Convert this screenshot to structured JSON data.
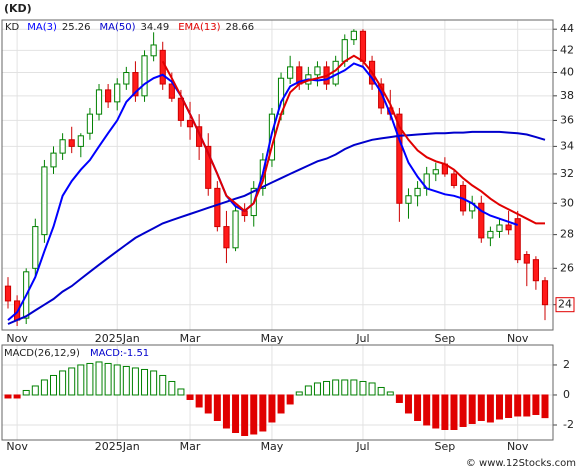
{
  "chart_data": [
    {
      "type": "candlestick",
      "title": "(KD)",
      "ticker": "KD",
      "log_scale": true,
      "grid": true,
      "legend": [
        {
          "name": "MA(3)",
          "value": 25.26,
          "color": "#0000ff"
        },
        {
          "name": "MA(50)",
          "value": 34.49,
          "color": "#0000cc"
        },
        {
          "name": "EMA(13)",
          "value": 28.66,
          "color": "#e00000"
        }
      ],
      "categories": [
        null,
        "Nov",
        null,
        null,
        null,
        null,
        null,
        null,
        null,
        null,
        null,
        null,
        "2025Jan",
        null,
        null,
        null,
        null,
        null,
        null,
        null,
        "Mar",
        null,
        null,
        null,
        null,
        null,
        null,
        null,
        null,
        "May",
        null,
        null,
        null,
        null,
        null,
        null,
        null,
        null,
        null,
        "Jul",
        null,
        null,
        null,
        null,
        null,
        null,
        null,
        null,
        "Sep",
        null,
        null,
        null,
        null,
        null,
        null,
        null,
        "Nov",
        null,
        null,
        null
      ],
      "open": [
        25,
        24.2,
        23.3,
        26,
        28,
        32.5,
        33.5,
        34.5,
        34,
        35,
        36.5,
        38.5,
        37.5,
        39,
        40,
        38,
        41.5,
        42,
        39,
        37.8,
        36,
        35.5,
        34,
        31,
        28.5,
        27.2,
        29.5,
        29.2,
        31,
        33,
        36.5,
        39.5,
        40.5,
        39,
        39.8,
        40.5,
        39,
        41,
        43,
        43.8,
        41,
        39,
        37,
        36.5,
        30,
        30.5,
        31,
        32,
        32.7,
        32,
        31.2,
        29.5,
        30,
        27.8,
        28.2,
        28.6,
        29,
        26.8,
        26.5,
        25.3
      ],
      "high": [
        25.5,
        24.5,
        26,
        29,
        33,
        34,
        35,
        35.5,
        35,
        37,
        39,
        39,
        39.5,
        40.5,
        41,
        42,
        43.7,
        42.8,
        40,
        38.5,
        37.5,
        36.5,
        35,
        31.5,
        29.5,
        29.8,
        30,
        31.5,
        33.5,
        37,
        40,
        41.5,
        41,
        40.5,
        41,
        41,
        41.5,
        43.5,
        44,
        44,
        41.5,
        39.5,
        38.5,
        37,
        31,
        31.5,
        32.5,
        32.8,
        33.2,
        32.3,
        31.5,
        30.5,
        30.5,
        28.5,
        29,
        29.5,
        29.5,
        27,
        26.7,
        25.5
      ],
      "low": [
        23.8,
        22.9,
        23,
        25.5,
        27.5,
        32,
        33,
        33.5,
        33.2,
        34.5,
        36,
        37,
        36.8,
        38.5,
        37.5,
        37.5,
        41,
        38.5,
        37.5,
        35.5,
        34.5,
        33,
        30.5,
        28.2,
        26.3,
        27,
        28.8,
        28.5,
        30.5,
        32.5,
        36,
        39,
        38.5,
        38.5,
        38.8,
        38.5,
        38.8,
        40.5,
        42.5,
        40.5,
        38.5,
        36.5,
        36,
        28.8,
        29,
        29.8,
        30.5,
        31.5,
        31.8,
        31,
        29.2,
        29,
        27.5,
        27.3,
        27.8,
        28,
        26.3,
        25,
        24.8,
        23.2
      ],
      "close": [
        24.2,
        23.2,
        25.8,
        28.5,
        32.5,
        33.5,
        34.5,
        34,
        34.8,
        36.5,
        38.5,
        37.5,
        39,
        40,
        38,
        41.5,
        42.5,
        39,
        37.8,
        36,
        35.5,
        34,
        31,
        28.5,
        27.2,
        29.5,
        29.2,
        31,
        33,
        36.5,
        39.5,
        40.5,
        39,
        39.8,
        40.5,
        39,
        41,
        43,
        43.8,
        41,
        39,
        37,
        36.5,
        30,
        30.5,
        31,
        32,
        32.3,
        32,
        31.2,
        29.5,
        30,
        27.8,
        28.2,
        28.6,
        28.3,
        26.5,
        26.3,
        25.3,
        24
      ],
      "lines": [
        {
          "name": "MA(50)",
          "color": "#0000cc",
          "values": [
            23,
            23.2,
            23.4,
            23.7,
            24,
            24.3,
            24.7,
            25,
            25.4,
            25.8,
            26.2,
            26.6,
            27,
            27.4,
            27.8,
            28.1,
            28.4,
            28.7,
            28.9,
            29.1,
            29.3,
            29.5,
            29.7,
            29.9,
            30.1,
            30.3,
            30.5,
            30.8,
            31.1,
            31.4,
            31.7,
            32,
            32.3,
            32.6,
            32.9,
            33.1,
            33.4,
            33.8,
            34.1,
            34.3,
            34.5,
            34.6,
            34.7,
            34.8,
            34.85,
            34.9,
            34.95,
            35,
            35,
            35.05,
            35.05,
            35.1,
            35.1,
            35.1,
            35.1,
            35.05,
            35,
            34.9,
            34.7,
            34.5
          ]
        },
        {
          "color": "#0000ff",
          "values": [
            23.2,
            23.6,
            24.5,
            25.5,
            27,
            28.5,
            30.5,
            31.5,
            32.3,
            33,
            34,
            35,
            36,
            37.5,
            38.3,
            39,
            39.5,
            39.8,
            39.2,
            38,
            36.5,
            35,
            33.5,
            32,
            30.5,
            29.8,
            29.5,
            30,
            32,
            35,
            37.5,
            38.8,
            39.2,
            39.4,
            39.3,
            39.4,
            39.8,
            40.2,
            40.8,
            40.5,
            39.5,
            38.3,
            36.5,
            34.5,
            32.8,
            31.8,
            31,
            30.8,
            30.6,
            30.5,
            30.3,
            30,
            29.5,
            29.2,
            29,
            28.8,
            28.6,
            null,
            null,
            null
          ]
        },
        {
          "name": "EMA(13)",
          "color": "#e00000",
          "values": [
            null,
            null,
            null,
            null,
            null,
            null,
            null,
            null,
            null,
            null,
            null,
            null,
            null,
            null,
            null,
            null,
            null,
            41,
            39.5,
            38,
            36.5,
            35,
            33.5,
            32,
            30.5,
            30,
            29.5,
            30,
            31.5,
            34,
            36.5,
            38.3,
            39,
            39.3,
            39.5,
            39.7,
            40.2,
            41,
            41.5,
            41,
            40,
            38.7,
            37.3,
            35.5,
            34.5,
            33.7,
            33.2,
            32.9,
            32.7,
            32.3,
            31.7,
            31.2,
            30.8,
            30.3,
            29.9,
            29.6,
            29.3,
            29,
            28.7,
            28.7
          ]
        }
      ],
      "last_price": 24,
      "ylim": [
        22.7,
        44.9
      ],
      "yticks": [
        24,
        26,
        28,
        30,
        32,
        34,
        36,
        38,
        40,
        42,
        44
      ]
    },
    {
      "type": "bar",
      "title": "MACD(26,12,9)",
      "macd_label": "MACD:-1.51",
      "grid": true,
      "categories": [
        null,
        "Nov",
        null,
        null,
        null,
        null,
        null,
        null,
        null,
        null,
        null,
        null,
        "2025Jan",
        null,
        null,
        null,
        null,
        null,
        null,
        null,
        "Mar",
        null,
        null,
        null,
        null,
        null,
        null,
        null,
        null,
        "May",
        null,
        null,
        null,
        null,
        null,
        null,
        null,
        null,
        null,
        "Jul",
        null,
        null,
        null,
        null,
        null,
        null,
        null,
        null,
        "Sep",
        null,
        null,
        null,
        null,
        null,
        null,
        null,
        "Nov",
        null,
        null,
        null
      ],
      "values": [
        -0.2,
        -0.2,
        0.3,
        0.6,
        1,
        1.3,
        1.6,
        1.8,
        2,
        2.1,
        2.2,
        2.1,
        2,
        1.9,
        1.8,
        1.7,
        1.6,
        1.3,
        0.9,
        0.4,
        -0.3,
        -0.8,
        -1.2,
        -1.7,
        -2.2,
        -2.5,
        -2.7,
        -2.6,
        -2.4,
        -1.8,
        -1.2,
        -0.6,
        0.2,
        0.6,
        0.8,
        0.9,
        1,
        1,
        1,
        0.9,
        0.8,
        0.5,
        0.2,
        -0.5,
        -1.2,
        -1.7,
        -2,
        -2.2,
        -2.3,
        -2.3,
        -2.1,
        -1.9,
        -1.7,
        -1.8,
        -1.6,
        -1.5,
        -1.4,
        -1.4,
        -1.3,
        -1.51
      ],
      "up_color": "#008000",
      "down_color": "#e00000",
      "ylim": [
        -3,
        3.33
      ],
      "yticks": [
        -2,
        0,
        2
      ]
    }
  ],
  "footer": "© www.12Stocks.com"
}
